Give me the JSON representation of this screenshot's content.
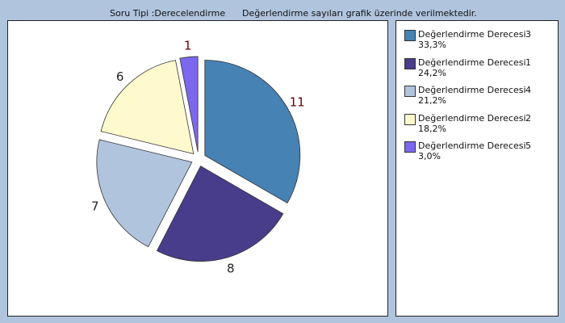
{
  "header": {
    "question_type": "Soru Tipi :Derecelendirme",
    "note": "Değerlendirme sayıları grafik üzerinde verilmektedir."
  },
  "chart_data": {
    "type": "pie",
    "series": [
      {
        "name": "Değerlendirme Derecesi",
        "degree": "3",
        "value": 11,
        "percent": "33,3%",
        "color": "#4682b4",
        "label_color": "#6b0000"
      },
      {
        "name": "Değerlendirme Derecesi",
        "degree": "1",
        "value": 8,
        "percent": "24,2%",
        "color": "#483d8b",
        "label_color": "#222222"
      },
      {
        "name": "Değerlendirme Derecesi",
        "degree": "4",
        "value": 7,
        "percent": "21,2%",
        "color": "#b0c4de",
        "label_color": "#222222"
      },
      {
        "name": "Değerlendirme Derecesi",
        "degree": "2",
        "value": 6,
        "percent": "18,2%",
        "color": "#fffacd",
        "label_color": "#222222"
      },
      {
        "name": "Değerlendirme Derecesi",
        "degree": "5",
        "value": 1,
        "percent": "3,0%",
        "color": "#7b68ee",
        "label_color": "#6b0000"
      }
    ],
    "legend": "right"
  }
}
